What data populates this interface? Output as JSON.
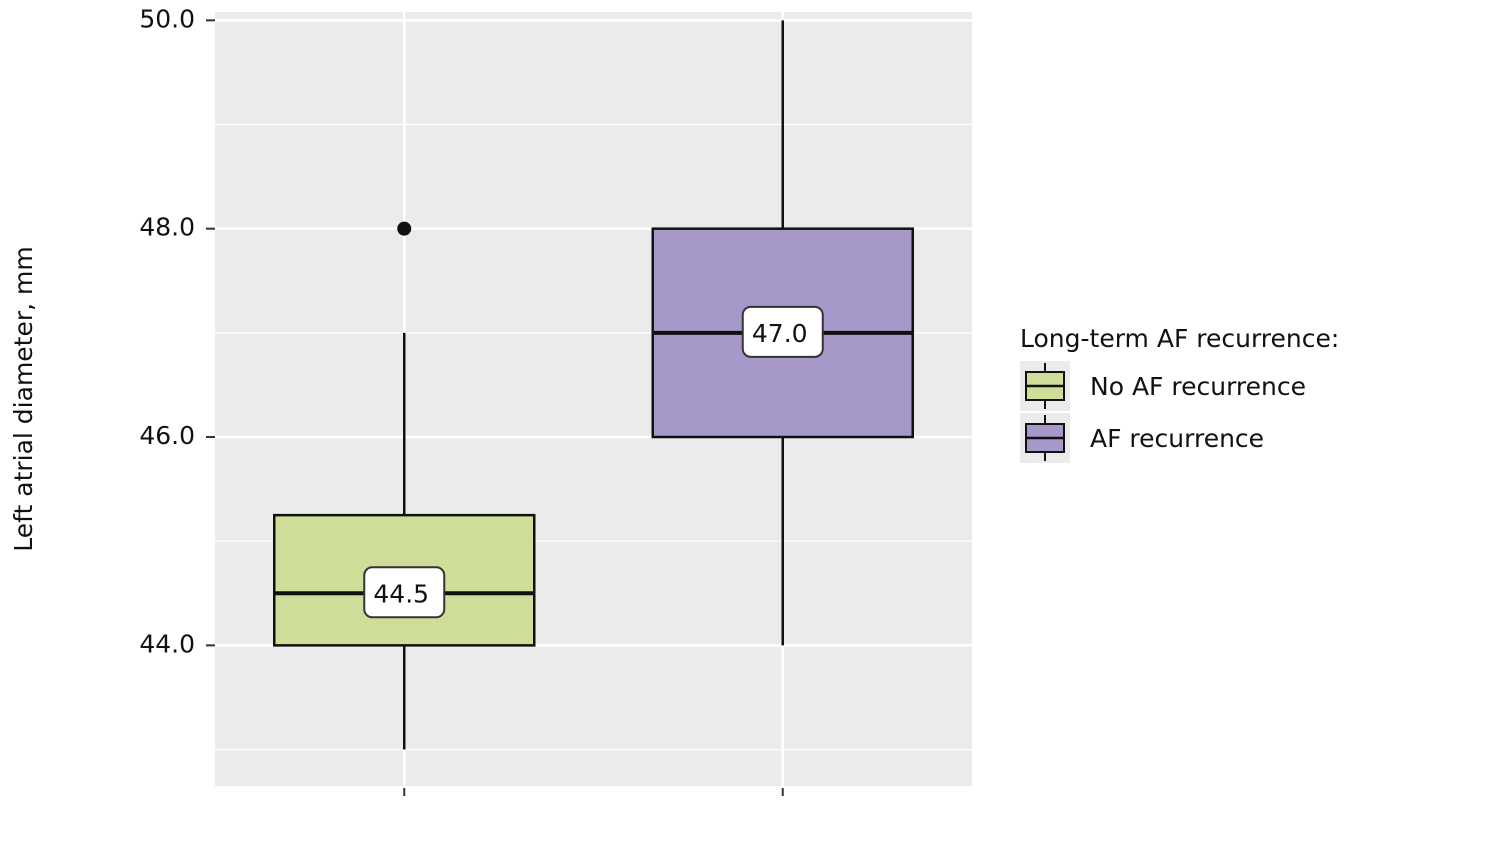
{
  "chart_data": {
    "type": "box",
    "y_label": "Left atrial diameter, mm",
    "legend_title": "Long-term AF recurrence:",
    "legend": "right",
    "grid": true,
    "categories": [
      null,
      null
    ],
    "ylim": [
      42.65,
      50.08
    ],
    "yticks": [
      {
        "value": 44,
        "label": "44.0"
      },
      {
        "value": 46,
        "label": "46.0"
      },
      {
        "value": 48,
        "label": "48.0"
      },
      {
        "value": 50,
        "label": "50.0"
      }
    ],
    "minor_yticks": [
      43,
      45,
      47,
      49
    ],
    "series": [
      {
        "name": "No AF recurrence",
        "color": "#cedd98",
        "min": 43,
        "q1": 44,
        "median": 44.5,
        "median_label": "44.5",
        "q3": 45.25,
        "max": 47,
        "outliers": [
          48
        ]
      },
      {
        "name": "AF recurrence",
        "color": "#a698c9",
        "min": 44,
        "q1": 46,
        "median": 47,
        "median_label": "47.0",
        "q3": 48,
        "max": 50,
        "outliers": []
      }
    ]
  }
}
